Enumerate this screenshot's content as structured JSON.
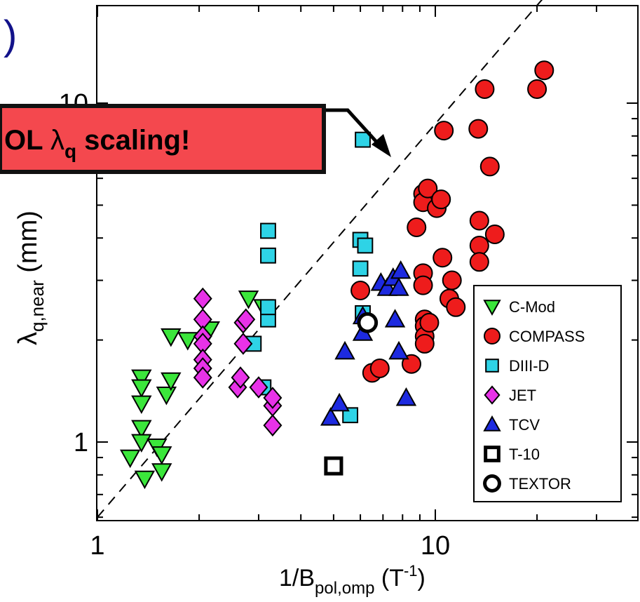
{
  "chart_data": {
    "type": "scatter",
    "title": "",
    "xlabel": {
      "base": "1/B",
      "sub": "pol,omp",
      "unit_open": " (T",
      "unit_sup": "-1",
      "unit_close": ")"
    },
    "ylabel": {
      "base": "λ",
      "sub": "q,near",
      "unit": " (mm)"
    },
    "x_scale": "log",
    "y_scale": "log",
    "xlim": [
      1,
      45
    ],
    "ylim": [
      0.6,
      30
    ],
    "x_ticks": [
      {
        "value": 1,
        "label": "1"
      },
      {
        "value": 10,
        "label": "10"
      }
    ],
    "y_ticks": [
      {
        "value": 1,
        "label": "1"
      },
      {
        "value": 10,
        "label": "10"
      }
    ],
    "grid": false,
    "legend_position": "bottom-right",
    "reference_line": {
      "style": "dashed",
      "points": [
        [
          1.0,
          0.6
        ],
        [
          24.0,
          24.0
        ]
      ]
    },
    "callout": {
      "text_lead": "OL ",
      "lambda": "λ",
      "sub": "q",
      "text_tail": " scaling!",
      "fill": "#f4484e"
    },
    "partial_text": ")",
    "series": [
      {
        "name": "C-Mod",
        "marker": "triangle-down",
        "color": "#3be63b",
        "points": [
          [
            1.25,
            0.9
          ],
          [
            1.35,
            1.55
          ],
          [
            1.35,
            1.45
          ],
          [
            1.35,
            1.3
          ],
          [
            1.35,
            1.1
          ],
          [
            1.35,
            1.0
          ],
          [
            1.38,
            0.78
          ],
          [
            1.5,
            0.97
          ],
          [
            1.55,
            0.92
          ],
          [
            1.55,
            0.82
          ],
          [
            1.6,
            1.38
          ],
          [
            1.65,
            1.52
          ],
          [
            1.65,
            2.05
          ],
          [
            1.85,
            2.0
          ],
          [
            2.15,
            2.15
          ],
          [
            2.8,
            2.65
          ],
          [
            3.1,
            2.5
          ]
        ]
      },
      {
        "name": "COMPASS",
        "marker": "circle",
        "color": "#ee1c1c",
        "points": [
          [
            6.0,
            2.8
          ],
          [
            6.5,
            1.6
          ],
          [
            6.85,
            1.65
          ],
          [
            8.5,
            1.7
          ],
          [
            8.8,
            4.3
          ],
          [
            9.2,
            3.15
          ],
          [
            9.2,
            2.9
          ],
          [
            9.2,
            5.4
          ],
          [
            9.2,
            5.1
          ],
          [
            9.3,
            2.3
          ],
          [
            9.3,
            2.2
          ],
          [
            9.3,
            2.05
          ],
          [
            9.3,
            1.95
          ],
          [
            9.5,
            5.6
          ],
          [
            9.6,
            2.25
          ],
          [
            10.1,
            4.9
          ],
          [
            10.4,
            5.2
          ],
          [
            10.5,
            3.5
          ],
          [
            10.6,
            8.3
          ],
          [
            11.0,
            2.65
          ],
          [
            11.2,
            3.0
          ],
          [
            11.5,
            2.5
          ],
          [
            13.4,
            8.4
          ],
          [
            13.5,
            4.5
          ],
          [
            13.5,
            3.8
          ],
          [
            13.5,
            3.4
          ],
          [
            14.0,
            11.0
          ],
          [
            14.5,
            6.5
          ],
          [
            15.0,
            4.1
          ],
          [
            20.0,
            11.0
          ],
          [
            21.0,
            12.5
          ]
        ]
      },
      {
        "name": "DIII-D",
        "marker": "square",
        "color": "#2ed3e6",
        "points": [
          [
            2.9,
            1.95
          ],
          [
            3.1,
            1.45
          ],
          [
            3.2,
            2.3
          ],
          [
            3.2,
            2.5
          ],
          [
            3.2,
            4.2
          ],
          [
            3.2,
            3.55
          ],
          [
            5.6,
            1.2
          ],
          [
            6.0,
            3.95
          ],
          [
            6.0,
            3.25
          ],
          [
            6.1,
            7.8
          ],
          [
            6.1,
            2.4
          ],
          [
            6.2,
            3.8
          ]
        ]
      },
      {
        "name": "JET",
        "marker": "diamond",
        "color": "#e832e8",
        "points": [
          [
            2.05,
            2.65
          ],
          [
            2.05,
            2.3
          ],
          [
            2.05,
            2.05
          ],
          [
            2.05,
            1.95
          ],
          [
            2.05,
            1.75
          ],
          [
            2.05,
            1.65
          ],
          [
            2.05,
            1.55
          ],
          [
            2.6,
            1.45
          ],
          [
            2.65,
            1.55
          ],
          [
            2.7,
            1.95
          ],
          [
            2.7,
            2.25
          ],
          [
            2.75,
            2.3
          ],
          [
            3.0,
            1.45
          ],
          [
            3.3,
            1.28
          ],
          [
            3.3,
            1.12
          ],
          [
            3.3,
            1.35
          ]
        ]
      },
      {
        "name": "TCV",
        "marker": "triangle-up",
        "color": "#1d2ae0",
        "points": [
          [
            4.9,
            1.18
          ],
          [
            5.2,
            1.3
          ],
          [
            5.4,
            1.85
          ],
          [
            6.1,
            2.35
          ],
          [
            6.1,
            2.1
          ],
          [
            6.9,
            2.95
          ],
          [
            7.2,
            2.85
          ],
          [
            7.5,
            3.05
          ],
          [
            7.6,
            2.3
          ],
          [
            7.8,
            2.85
          ],
          [
            7.8,
            1.85
          ],
          [
            7.9,
            3.2
          ],
          [
            8.2,
            1.35
          ]
        ]
      },
      {
        "name": "T-10",
        "marker": "square-open",
        "color": "#000000",
        "points": [
          [
            5.0,
            0.85
          ]
        ]
      },
      {
        "name": "TEXTOR",
        "marker": "circle-open",
        "color": "#000000",
        "points": [
          [
            6.3,
            2.25
          ]
        ]
      }
    ]
  }
}
